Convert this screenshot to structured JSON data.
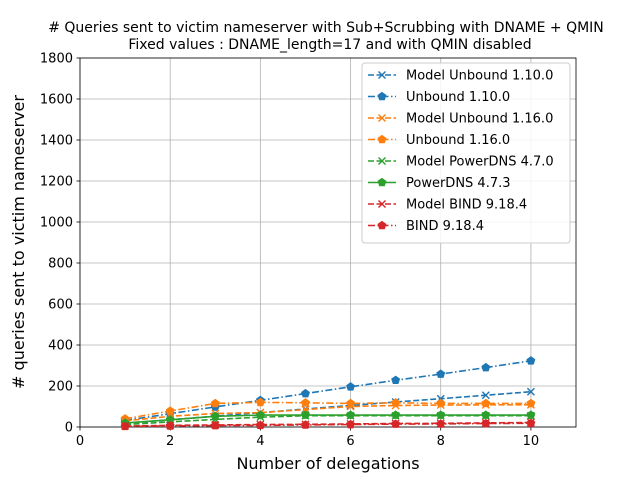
{
  "chart_data": {
    "type": "line",
    "title": "# Queries sent to victim nameserver with Sub+Scrubbing with DNAME + QMIN",
    "subtitle": "Fixed values : DNAME_length=17 and with QMIN disabled",
    "xlabel": "Number of delegations",
    "ylabel": "# queries sent to victim nameserver",
    "xlim": [
      0,
      11
    ],
    "ylim": [
      0,
      1800
    ],
    "xticks": [
      0,
      2,
      4,
      6,
      8,
      10
    ],
    "yticks": [
      0,
      200,
      400,
      600,
      800,
      1000,
      1200,
      1400,
      1600,
      1800
    ],
    "grid": true,
    "legend_position": "top-right",
    "x": [
      1,
      2,
      3,
      4,
      5,
      6,
      7,
      8,
      9,
      10
    ],
    "series": [
      {
        "name": "Model Unbound 1.10.0",
        "color": "#1f77b4",
        "marker": "x",
        "linestyle": "dashed",
        "values": [
          18,
          35,
          53,
          70,
          88,
          105,
          122,
          138,
          155,
          172
        ]
      },
      {
        "name": "Unbound 1.10.0",
        "color": "#1f77b4",
        "marker": "pentagon",
        "linestyle": "dashdot",
        "values": [
          32,
          65,
          98,
          130,
          163,
          196,
          228,
          258,
          290,
          323
        ]
      },
      {
        "name": "Model Unbound 1.16.0",
        "color": "#ff7f0e",
        "marker": "x",
        "linestyle": "dashed",
        "values": [
          30,
          52,
          66,
          70,
          85,
          100,
          105,
          107,
          108,
          108
        ]
      },
      {
        "name": "Unbound 1.16.0",
        "color": "#ff7f0e",
        "marker": "pentagon",
        "linestyle": "dashdot",
        "values": [
          40,
          78,
          115,
          120,
          118,
          115,
          118,
          115,
          115,
          115
        ]
      },
      {
        "name": "Model PowerDNS 4.7.0",
        "color": "#2ca02c",
        "marker": "x",
        "linestyle": "dashed",
        "values": [
          12,
          25,
          37,
          48,
          55,
          55,
          55,
          55,
          55,
          55
        ]
      },
      {
        "name": "PowerDNS 4.7.3",
        "color": "#2ca02c",
        "marker": "pentagon",
        "linestyle": "solid",
        "values": [
          20,
          35,
          52,
          58,
          58,
          58,
          58,
          58,
          58,
          58
        ]
      },
      {
        "name": "Model BIND 9.18.4",
        "color": "#d62728",
        "marker": "x",
        "linestyle": "dashed",
        "values": [
          5,
          8,
          10,
          12,
          13,
          15,
          17,
          18,
          20,
          22
        ]
      },
      {
        "name": "BIND 9.18.4",
        "color": "#d62728",
        "marker": "pentagon",
        "linestyle": "dashdot",
        "values": [
          3,
          5,
          7,
          8,
          10,
          12,
          14,
          15,
          17,
          18
        ]
      }
    ]
  }
}
